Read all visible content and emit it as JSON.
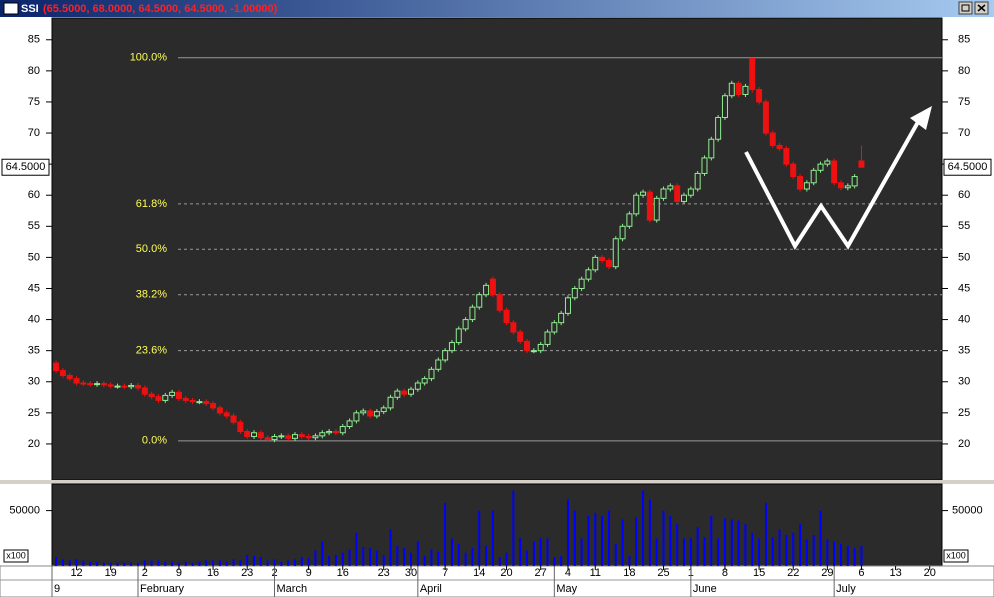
{
  "chart_data": [
    {
      "type": "candlestick",
      "title": "SSI",
      "subtitle": "(65.5000, 68.0000, 64.5000, 64.5000, -1.00000)",
      "open": [
        33,
        31.8,
        31,
        30.5,
        29.8,
        29.7,
        29.6,
        29.7,
        29.5,
        29.3,
        29.3,
        29.2,
        29.4,
        29,
        28,
        27.6,
        27,
        27.8,
        28.3,
        27.3,
        27,
        26.8,
        26.8,
        26.5,
        25.8,
        25,
        24.5,
        23.5,
        22,
        21.2,
        21.8,
        21,
        20.7,
        21.2,
        21.3,
        20.9,
        21.5,
        21.2,
        21,
        21.3,
        21.8,
        22,
        21.8,
        22.8,
        23.7,
        25,
        25.3,
        24.5,
        25.2,
        25.8,
        27.5,
        28.5,
        28,
        28.8,
        29.8,
        30.5,
        32,
        33.5,
        35,
        36.3,
        38.5,
        40,
        42,
        44,
        46.5,
        44,
        41.5,
        39.5,
        38,
        36.5,
        35,
        35,
        36,
        38,
        39.5,
        41,
        43.5,
        45,
        46.5,
        48,
        50,
        49.5,
        48.5,
        53,
        55,
        57,
        60,
        60.5,
        56,
        59.5,
        61,
        61.5,
        59,
        60,
        61,
        63.5,
        66,
        69,
        72.5,
        76,
        78,
        76.2,
        82,
        77,
        75,
        70,
        68,
        67.5,
        65,
        63,
        61,
        62,
        64,
        65,
        65.5,
        62,
        61.2,
        61.5,
        65.5
      ],
      "high": [
        33.4,
        32.2,
        31.4,
        30.9,
        30.2,
        30.1,
        30.1,
        30.1,
        29.9,
        29.7,
        29.7,
        29.8,
        29.8,
        29.4,
        28.4,
        28,
        28.2,
        28.7,
        28.7,
        27.7,
        27.4,
        27.2,
        27.2,
        26.9,
        26.2,
        25.4,
        24.9,
        23.9,
        22.4,
        22.2,
        22.2,
        21.4,
        21.6,
        21.7,
        21.7,
        21.9,
        21.9,
        21.6,
        21.7,
        22.2,
        22.4,
        22.4,
        23.2,
        24.1,
        25.4,
        25.7,
        25.7,
        25.6,
        26.2,
        27.9,
        28.9,
        28.9,
        29.2,
        30.2,
        30.9,
        32.4,
        33.9,
        35.4,
        36.7,
        38.9,
        40.4,
        42.4,
        44.4,
        45.9,
        46.9,
        44.4,
        41.9,
        39.9,
        38.4,
        36.9,
        35.4,
        36.4,
        38.4,
        39.9,
        41.4,
        43.9,
        45.4,
        46.9,
        48.4,
        50.4,
        50.4,
        49.9,
        53.4,
        55.4,
        57.4,
        60.4,
        60.9,
        60.9,
        59.9,
        61.4,
        61.9,
        61.9,
        60.4,
        61.4,
        63.9,
        66.4,
        69.4,
        72.9,
        76.4,
        78.4,
        78.4,
        77.9,
        82,
        77.4,
        75.4,
        70.4,
        68.4,
        67.9,
        65.4,
        63.4,
        62.4,
        64.4,
        65.4,
        65.9,
        65.9,
        62.4,
        61.9,
        63.4,
        68
      ],
      "low": [
        31.4,
        30.6,
        30.1,
        29.4,
        29.3,
        29.2,
        29.2,
        29.1,
        28.9,
        28.9,
        28.8,
        28.8,
        28.6,
        27.6,
        27.2,
        26.6,
        26.6,
        27.4,
        26.9,
        26.6,
        26.4,
        26.4,
        26.1,
        25.4,
        24.6,
        24.1,
        23.1,
        21.6,
        20.8,
        20.8,
        20.6,
        20.3,
        20.3,
        20.8,
        20.5,
        20.5,
        20.8,
        20.6,
        20.6,
        20.9,
        21.4,
        21.4,
        21.4,
        22.4,
        23.3,
        24.6,
        24.1,
        24.1,
        24.8,
        25.4,
        27.1,
        27.6,
        27.6,
        28.4,
        29.4,
        30.1,
        31.6,
        33.1,
        34.6,
        35.9,
        38.1,
        39.6,
        41.6,
        43.6,
        43.6,
        41.1,
        39.1,
        37.6,
        36.1,
        34.6,
        34.6,
        34.6,
        35.6,
        37.6,
        39.1,
        40.6,
        43.1,
        44.6,
        46.1,
        47.6,
        49.1,
        48.1,
        48.1,
        52.6,
        54.6,
        56.6,
        59.6,
        55.6,
        55.6,
        59.1,
        60.6,
        58.6,
        58.6,
        59.6,
        60.6,
        63.1,
        65.6,
        68.6,
        72.1,
        75.6,
        75.8,
        75.8,
        76.5,
        74.6,
        69.6,
        67.6,
        67.1,
        64.6,
        62.6,
        60.6,
        60.6,
        61.6,
        63.6,
        64.6,
        61.6,
        60.8,
        60.8,
        61.1,
        64.5
      ],
      "close": [
        31.8,
        31,
        30.5,
        29.8,
        29.7,
        29.6,
        29.7,
        29.5,
        29.3,
        29.3,
        29.2,
        29.4,
        29,
        28,
        27.6,
        27,
        27.8,
        28.3,
        27.3,
        27,
        26.8,
        26.8,
        26.5,
        25.8,
        25,
        24.5,
        23.5,
        22,
        21.2,
        21.8,
        21,
        20.7,
        21.2,
        21.3,
        20.9,
        21.5,
        21.2,
        21,
        21.3,
        21.8,
        22,
        21.8,
        22.8,
        23.7,
        25,
        25.3,
        24.5,
        25.2,
        25.8,
        27.5,
        28.5,
        28,
        28.8,
        29.8,
        30.5,
        32,
        33.5,
        35,
        36.3,
        38.5,
        40,
        42,
        44,
        45.5,
        44,
        41.5,
        39.5,
        38,
        36.5,
        35,
        35,
        36,
        38,
        39.5,
        41,
        43.5,
        45,
        46.5,
        48,
        50,
        49.5,
        48.5,
        53,
        55,
        57,
        60,
        60.5,
        56,
        59.5,
        61,
        61.5,
        59,
        60,
        61,
        63.5,
        66,
        69,
        72.5,
        76,
        78,
        76.2,
        77.5,
        77,
        75,
        70,
        68,
        67.5,
        65,
        63,
        61,
        62,
        64,
        65,
        65.5,
        62,
        61.2,
        61.5,
        63,
        64.5
      ],
      "up_color": "#90ee90",
      "down_color": "#ee1111",
      "xlim": [
        -0.6,
        129.8
      ],
      "ylim": [
        14.2,
        88.5
      ],
      "yticks": [
        20,
        25,
        30,
        35,
        40,
        45,
        50,
        55,
        60,
        65,
        70,
        75,
        80,
        85
      ],
      "last_price": {
        "value": 64.5,
        "label": "64.5000"
      },
      "fib_color": "#ffff55",
      "fib_levels": [
        {
          "ratio_label": "100.0%",
          "price": 82.1
        },
        {
          "ratio_label": "61.8%",
          "price": 58.6
        },
        {
          "ratio_label": "50.0%",
          "price": 51.3
        },
        {
          "ratio_label": "38.2%",
          "price": 44.0
        },
        {
          "ratio_label": "23.6%",
          "price": 35.0
        },
        {
          "ratio_label": "0.0%",
          "price": 20.5
        }
      ]
    },
    {
      "type": "bar",
      "values": [
        8000,
        6000,
        5000,
        6000,
        5000,
        4000,
        4000,
        3000,
        3000,
        3000,
        3000,
        3000,
        3000,
        5000,
        5000,
        5000,
        4000,
        4000,
        3000,
        4000,
        3000,
        4000,
        5000,
        5000,
        5000,
        4000,
        6000,
        5000,
        10000,
        9000,
        8000,
        5000,
        6000,
        4000,
        5000,
        6000,
        8000,
        7000,
        14000,
        22000,
        9000,
        10000,
        12000,
        15000,
        30000,
        17000,
        16000,
        14000,
        10000,
        33000,
        18000,
        16000,
        12000,
        22000,
        9000,
        15000,
        13000,
        57000,
        25000,
        20000,
        12000,
        16000,
        50000,
        18000,
        50000,
        8000,
        12000,
        68000,
        25000,
        14000,
        22000,
        25000,
        25000,
        8000,
        9000,
        60000,
        50000,
        25000,
        45000,
        48000,
        45000,
        50000,
        20000,
        42000,
        9000,
        44000,
        68000,
        60000,
        25000,
        50000,
        45000,
        38000,
        25000,
        25000,
        35000,
        26000,
        45000,
        25000,
        43000,
        42000,
        41000,
        38000,
        30000,
        25000,
        57000,
        26000,
        33000,
        28000,
        30000,
        38000,
        24000,
        28000,
        50000,
        24000,
        22000,
        20000,
        18000,
        16000,
        18000
      ],
      "color": "#0000ff",
      "unit": "x100",
      "xlim": [
        -0.6,
        129.8
      ],
      "ylim": [
        0,
        74000
      ],
      "yticks": [
        50000
      ],
      "xticks": [
        {
          "value": 3,
          "label": "12"
        },
        {
          "value": 8,
          "label": "19"
        },
        {
          "value": 13,
          "label": "2"
        },
        {
          "value": 18,
          "label": "9"
        },
        {
          "value": 23,
          "label": "16"
        },
        {
          "value": 28,
          "label": "23"
        },
        {
          "value": 32,
          "label": "2"
        },
        {
          "value": 37,
          "label": "9"
        },
        {
          "value": 42,
          "label": "16"
        },
        {
          "value": 48,
          "label": "23"
        },
        {
          "value": 52,
          "label": "30"
        },
        {
          "value": 57,
          "label": "7"
        },
        {
          "value": 62,
          "label": "14"
        },
        {
          "value": 66,
          "label": "20"
        },
        {
          "value": 71,
          "label": "27"
        },
        {
          "value": 75,
          "label": "4"
        },
        {
          "value": 79,
          "label": "11"
        },
        {
          "value": 84,
          "label": "18"
        },
        {
          "value": 89,
          "label": "25"
        },
        {
          "value": 93,
          "label": "1"
        },
        {
          "value": 98,
          "label": "8"
        },
        {
          "value": 103,
          "label": "15"
        },
        {
          "value": 108,
          "label": "22"
        },
        {
          "value": 113,
          "label": "29"
        },
        {
          "value": 118,
          "label": "6"
        },
        {
          "value": 123,
          "label": "13"
        },
        {
          "value": 128,
          "label": "20"
        }
      ],
      "month_ticks": [
        {
          "value": -0.6,
          "label": "9"
        },
        {
          "value": 12,
          "label": "February"
        },
        {
          "value": 32,
          "label": "March"
        },
        {
          "value": 53,
          "label": "April"
        },
        {
          "value": 73,
          "label": "May"
        },
        {
          "value": 93,
          "label": "June"
        },
        {
          "value": 114,
          "label": "July"
        }
      ]
    }
  ]
}
